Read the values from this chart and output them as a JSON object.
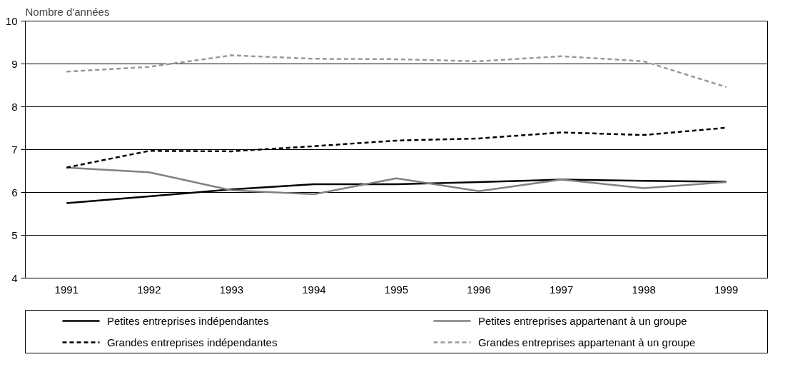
{
  "chart_data": {
    "type": "line",
    "ylabel": "Nombre d'années",
    "categories": [
      "1991",
      "1992",
      "1993",
      "1994",
      "1995",
      "1996",
      "1997",
      "1998",
      "1999"
    ],
    "ylim": [
      4,
      10
    ],
    "yticks": [
      4,
      5,
      6,
      7,
      8,
      9,
      10
    ],
    "grid": "y",
    "legend": "bottom",
    "series": [
      {
        "name": "Petites entreprises indépendantes",
        "color": "#000000",
        "line_style": "solid",
        "values": [
          5.75,
          5.91,
          6.07,
          6.19,
          6.19,
          6.24,
          6.3,
          6.27,
          6.25
        ]
      },
      {
        "name": "Petites entreprises appartenant à un groupe",
        "color": "#808080",
        "line_style": "solid",
        "values": [
          6.58,
          6.47,
          6.05,
          5.96,
          6.33,
          6.03,
          6.3,
          6.1,
          6.24
        ]
      },
      {
        "name": "Grandes entreprises indépendantes",
        "color": "#000000",
        "line_style": "dashed",
        "values": [
          6.58,
          6.97,
          6.96,
          7.08,
          7.21,
          7.26,
          7.4,
          7.34,
          7.51
        ]
      },
      {
        "name": "Grandes entreprises appartenant à un groupe",
        "color": "#999999",
        "line_style": "dashed",
        "values": [
          8.82,
          8.93,
          9.2,
          9.12,
          9.11,
          9.06,
          9.18,
          9.06,
          8.46
        ]
      }
    ]
  }
}
